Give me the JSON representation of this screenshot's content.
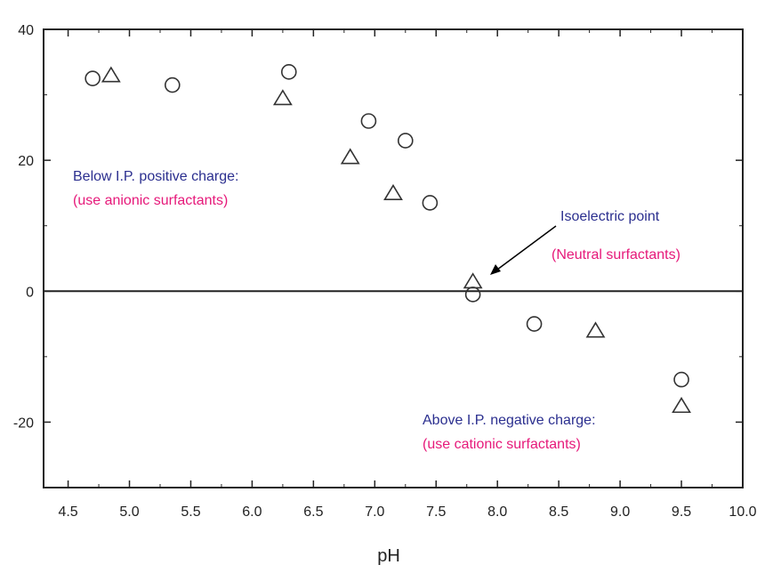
{
  "chart_data": {
    "type": "scatter",
    "title": "",
    "xlabel": "pH",
    "ylabel": "",
    "xlim": [
      4.3,
      10.0
    ],
    "ylim": [
      -30,
      40
    ],
    "x_ticks": [
      4.5,
      5.0,
      5.5,
      6.0,
      6.5,
      7.0,
      7.5,
      8.0,
      8.5,
      9.0,
      9.5,
      10.0
    ],
    "x_tick_labels": [
      "4.5",
      "5.0",
      "5.5",
      "6.0",
      "6.5",
      "7.0",
      "7.5",
      "8.0",
      "8.5",
      "9.0",
      "9.5",
      "10.0"
    ],
    "y_ticks": [
      -20,
      0,
      20,
      40
    ],
    "y_tick_labels": [
      "-20",
      "0",
      "20",
      "40"
    ],
    "zero_line": true,
    "grid": false,
    "legend": "none",
    "series": [
      {
        "marker": "circle",
        "x": [
          4.7,
          5.35,
          6.3,
          6.95,
          7.25,
          7.45,
          7.8,
          8.3,
          9.5
        ],
        "y": [
          32.5,
          31.5,
          33.5,
          26,
          23,
          13.5,
          -0.5,
          -5,
          -13.5
        ]
      },
      {
        "marker": "triangle",
        "x": [
          4.85,
          6.25,
          6.8,
          7.15,
          7.8,
          8.8,
          9.5
        ],
        "y": [
          33,
          29.5,
          20.5,
          15,
          1.5,
          -6,
          -17.5
        ]
      }
    ],
    "annotations": [
      {
        "id": "below",
        "line1": "Below I.P. positive charge:",
        "line2": "(use anionic surfactants)"
      },
      {
        "id": "iso",
        "line1": "Isoelectric point",
        "line2": "(Neutral surfactants)"
      },
      {
        "id": "above",
        "line1": "Above I.P. negative charge:",
        "line2": "(use cationic surfactants)"
      }
    ]
  },
  "colors": {
    "text_blue": "#2b2f8f",
    "text_pink": "#e6197a",
    "axis": "#222222",
    "marker": "#333333"
  }
}
